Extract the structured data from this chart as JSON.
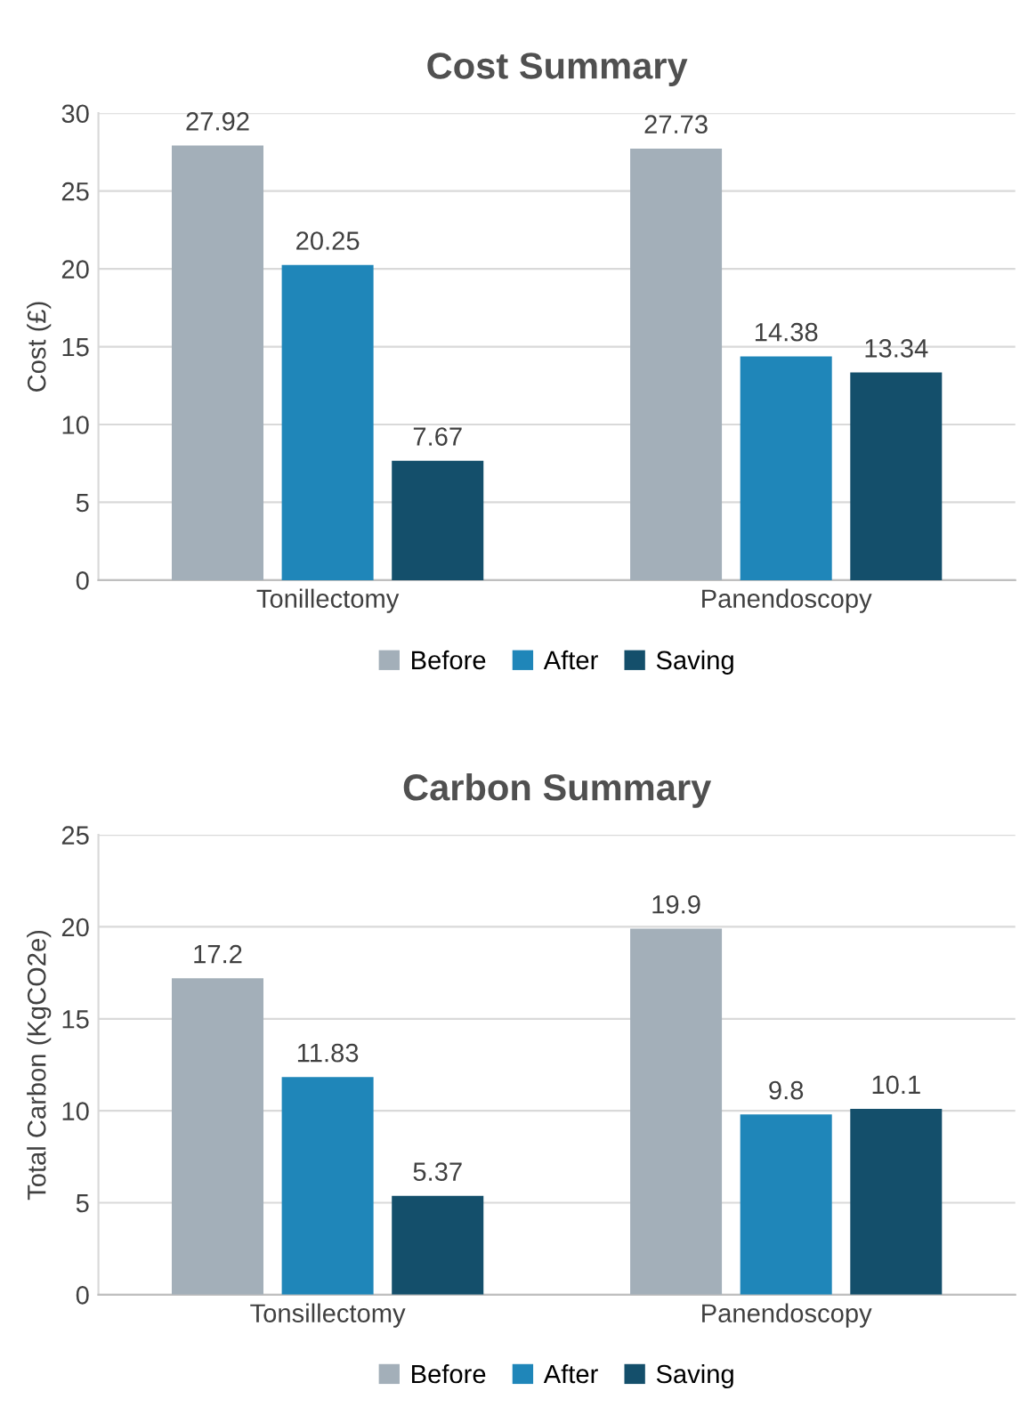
{
  "chart_data": [
    {
      "type": "bar",
      "title": "Cost Summary",
      "ylabel": "Cost (£)",
      "categories": [
        "Tonillectomy",
        "Panendoscopy"
      ],
      "series": [
        {
          "name": "Before",
          "color": "#a3afb9",
          "values": [
            27.92,
            27.73
          ]
        },
        {
          "name": "After",
          "color": "#1f86b9",
          "values": [
            20.25,
            14.38
          ]
        },
        {
          "name": "Saving",
          "color": "#144f6b",
          "values": [
            7.67,
            13.34
          ]
        }
      ],
      "ylim": [
        0,
        30
      ],
      "yticks": [
        0,
        5,
        10,
        15,
        20,
        25,
        30
      ],
      "grid": "y",
      "legend": "bottom",
      "data_labels": true
    },
    {
      "type": "bar",
      "title": "Carbon Summary",
      "ylabel": "Total Carbon (KgCO2e)",
      "categories": [
        "Tonsillectomy",
        "Panendoscopy"
      ],
      "series": [
        {
          "name": "Before",
          "color": "#a3afb9",
          "values": [
            17.2,
            19.9
          ]
        },
        {
          "name": "After",
          "color": "#1f86b9",
          "values": [
            11.83,
            9.8
          ]
        },
        {
          "name": "Saving",
          "color": "#144f6b",
          "values": [
            5.37,
            10.1
          ]
        }
      ],
      "ylim": [
        0,
        25
      ],
      "yticks": [
        0,
        5,
        10,
        15,
        20,
        25
      ],
      "grid": "y",
      "legend": "bottom",
      "data_labels": true
    }
  ]
}
